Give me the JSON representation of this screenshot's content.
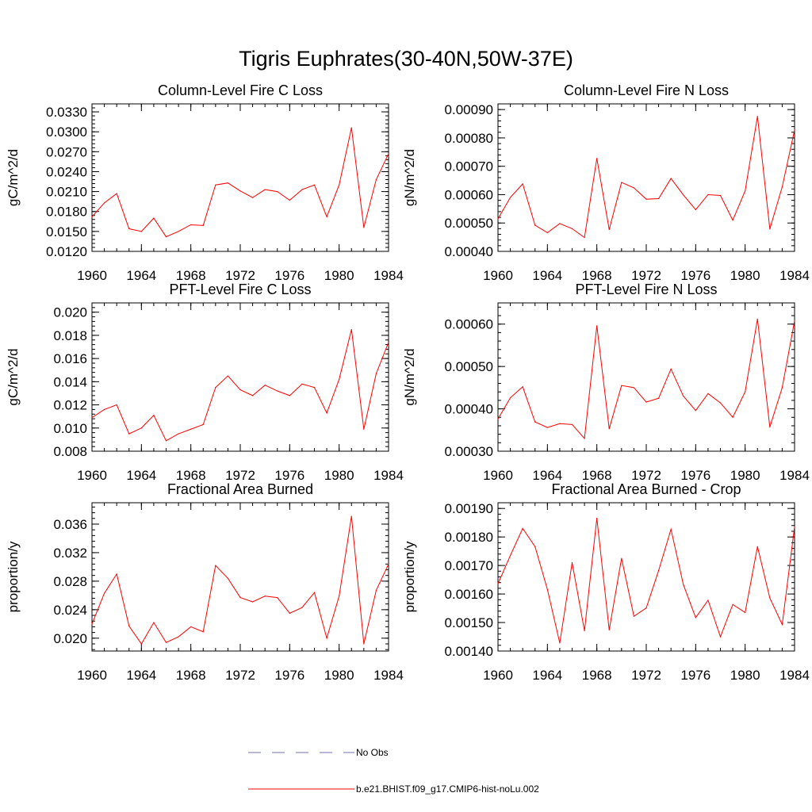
{
  "figure": {
    "title": "Tigris Euphrates(30-40N,50W-37E)"
  },
  "chart_data": [
    {
      "type": "line",
      "title": "Column-Level Fire C Loss",
      "ylabel": "gC/m^2/d",
      "xlabel": "",
      "xlim": [
        1960,
        1984
      ],
      "ylim": [
        0.012,
        0.0342
      ],
      "x_ticks": [
        1960,
        1964,
        1968,
        1972,
        1976,
        1980,
        1984
      ],
      "x_tick_labels": [
        "1960",
        "1964",
        "1968",
        "1972",
        "1976",
        "1980",
        "1984"
      ],
      "y_ticks": [
        0.012,
        0.015,
        0.018,
        0.021,
        0.024,
        0.027,
        0.03,
        0.033
      ],
      "y_tick_labels": [
        "0.0120",
        "0.0150",
        "0.0180",
        "0.0210",
        "0.0240",
        "0.0270",
        "0.0300",
        "0.0330"
      ],
      "x": [
        1960,
        1961,
        1962,
        1963,
        1964,
        1965,
        1966,
        1967,
        1968,
        1969,
        1970,
        1971,
        1972,
        1973,
        1974,
        1975,
        1976,
        1977,
        1978,
        1979,
        1980,
        1981,
        1982,
        1983,
        1984
      ],
      "series": [
        {
          "name": "b.e21.BHIST.f09_g17.CMIP6-hist-noLu.002",
          "color": "#ff0000",
          "values": [
            0.0172,
            0.0193,
            0.0207,
            0.0154,
            0.015,
            0.017,
            0.0142,
            0.015,
            0.016,
            0.0159,
            0.022,
            0.0223,
            0.0211,
            0.0201,
            0.0213,
            0.021,
            0.0197,
            0.0213,
            0.022,
            0.0172,
            0.022,
            0.0306,
            0.0156,
            0.0228,
            0.0267
          ]
        }
      ]
    },
    {
      "type": "line",
      "title": "Column-Level Fire N Loss",
      "ylabel": "gN/m^2/d",
      "xlabel": "",
      "xlim": [
        1960,
        1984
      ],
      "ylim": [
        0.0004,
        0.00092
      ],
      "x_ticks": [
        1960,
        1964,
        1968,
        1972,
        1976,
        1980,
        1984
      ],
      "x_tick_labels": [
        "1960",
        "1964",
        "1968",
        "1972",
        "1976",
        "1980",
        "1984"
      ],
      "y_ticks": [
        0.0004,
        0.0005,
        0.0006,
        0.0007,
        0.0008,
        0.0009
      ],
      "y_tick_labels": [
        "0.00040",
        "0.00050",
        "0.00060",
        "0.00070",
        "0.00080",
        "0.00090"
      ],
      "x": [
        1960,
        1961,
        1962,
        1963,
        1964,
        1965,
        1966,
        1967,
        1968,
        1969,
        1970,
        1971,
        1972,
        1973,
        1974,
        1975,
        1976,
        1977,
        1978,
        1979,
        1980,
        1981,
        1982,
        1983,
        1984
      ],
      "series": [
        {
          "name": "b.e21.BHIST.f09_g17.CMIP6-hist-noLu.002",
          "color": "#ff0000",
          "values": [
            0.000515,
            0.00059,
            0.000638,
            0.000492,
            0.000466,
            0.000498,
            0.00048,
            0.000449,
            0.000728,
            0.000477,
            0.000643,
            0.000624,
            0.000584,
            0.000586,
            0.000657,
            0.000599,
            0.000547,
            0.0006,
            0.000597,
            0.00051,
            0.000613,
            0.000876,
            0.000479,
            0.000627,
            0.000828
          ]
        }
      ]
    },
    {
      "type": "line",
      "title": "PFT-Level Fire C Loss",
      "ylabel": "gC/m^2/d",
      "xlabel": "",
      "xlim": [
        1960,
        1984
      ],
      "ylim": [
        0.008,
        0.0208
      ],
      "x_ticks": [
        1960,
        1964,
        1968,
        1972,
        1976,
        1980,
        1984
      ],
      "x_tick_labels": [
        "1960",
        "1964",
        "1968",
        "1972",
        "1976",
        "1980",
        "1984"
      ],
      "y_ticks": [
        0.008,
        0.01,
        0.012,
        0.014,
        0.016,
        0.018,
        0.02
      ],
      "y_tick_labels": [
        "0.008",
        "0.010",
        "0.012",
        "0.014",
        "0.016",
        "0.018",
        "0.020"
      ],
      "x": [
        1960,
        1961,
        1962,
        1963,
        1964,
        1965,
        1966,
        1967,
        1968,
        1969,
        1970,
        1971,
        1972,
        1973,
        1974,
        1975,
        1976,
        1977,
        1978,
        1979,
        1980,
        1981,
        1982,
        1983,
        1984
      ],
      "series": [
        {
          "name": "b.e21.BHIST.f09_g17.CMIP6-hist-noLu.002",
          "color": "#ff0000",
          "values": [
            0.0109,
            0.0116,
            0.012,
            0.0095,
            0.01,
            0.0111,
            0.0089,
            0.0095,
            0.0099,
            0.0103,
            0.0135,
            0.0145,
            0.0133,
            0.0128,
            0.0137,
            0.0132,
            0.0128,
            0.0138,
            0.0135,
            0.0113,
            0.0142,
            0.0185,
            0.0099,
            0.0147,
            0.0174
          ]
        }
      ]
    },
    {
      "type": "line",
      "title": "PFT-Level Fire N Loss",
      "ylabel": "gN/m^2/d",
      "xlabel": "",
      "xlim": [
        1960,
        1984
      ],
      "ylim": [
        0.0003,
        0.00065
      ],
      "x_ticks": [
        1960,
        1964,
        1968,
        1972,
        1976,
        1980,
        1984
      ],
      "x_tick_labels": [
        "1960",
        "1964",
        "1968",
        "1972",
        "1976",
        "1980",
        "1984"
      ],
      "y_ticks": [
        0.0003,
        0.0004,
        0.0005,
        0.0006
      ],
      "y_tick_labels": [
        "0.00030",
        "0.00040",
        "0.00050",
        "0.00060"
      ],
      "x": [
        1960,
        1961,
        1962,
        1963,
        1964,
        1965,
        1966,
        1967,
        1968,
        1969,
        1970,
        1971,
        1972,
        1973,
        1974,
        1975,
        1976,
        1977,
        1978,
        1979,
        1980,
        1981,
        1982,
        1983,
        1984
      ],
      "series": [
        {
          "name": "b.e21.BHIST.f09_g17.CMIP6-hist-noLu.002",
          "color": "#ff0000",
          "values": [
            0.000376,
            0.000426,
            0.000452,
            0.000369,
            0.000356,
            0.000365,
            0.000363,
            0.00033,
            0.000596,
            0.000353,
            0.000455,
            0.00045,
            0.000416,
            0.000425,
            0.000494,
            0.00043,
            0.000396,
            0.000436,
            0.000414,
            0.00038,
            0.00044,
            0.000612,
            0.000357,
            0.00045,
            0.000608
          ]
        }
      ]
    },
    {
      "type": "line",
      "title": "Fractional Area Burned",
      "ylabel": "proportion/y",
      "xlabel": "",
      "xlim": [
        1960,
        1984
      ],
      "ylim": [
        0.0182,
        0.039
      ],
      "x_ticks": [
        1960,
        1964,
        1968,
        1972,
        1976,
        1980,
        1984
      ],
      "x_tick_labels": [
        "1960",
        "1964",
        "1968",
        "1972",
        "1976",
        "1980",
        "1984"
      ],
      "y_ticks": [
        0.02,
        0.024,
        0.028,
        0.032,
        0.036
      ],
      "y_tick_labels": [
        "0.020",
        "0.024",
        "0.028",
        "0.032",
        "0.036"
      ],
      "x": [
        1960,
        1961,
        1962,
        1963,
        1964,
        1965,
        1966,
        1967,
        1968,
        1969,
        1970,
        1971,
        1972,
        1973,
        1974,
        1975,
        1976,
        1977,
        1978,
        1979,
        1980,
        1981,
        1982,
        1983,
        1984
      ],
      "series": [
        {
          "name": "b.e21.BHIST.f09_g17.CMIP6-hist-noLu.002",
          "color": "#ff0000",
          "values": [
            0.022,
            0.0263,
            0.029,
            0.0217,
            0.0192,
            0.0222,
            0.0194,
            0.0202,
            0.0216,
            0.0209,
            0.0302,
            0.0284,
            0.0257,
            0.0251,
            0.0259,
            0.0257,
            0.0235,
            0.0243,
            0.0264,
            0.02,
            0.0259,
            0.0371,
            0.0192,
            0.0267,
            0.0304
          ]
        }
      ]
    },
    {
      "type": "line",
      "title": "Fractional Area Burned - Crop",
      "ylabel": "proportion/y",
      "xlabel": "",
      "xlim": [
        1960,
        1984
      ],
      "ylim": [
        0.0014,
        0.00192
      ],
      "x_ticks": [
        1960,
        1964,
        1968,
        1972,
        1976,
        1980,
        1984
      ],
      "x_tick_labels": [
        "1960",
        "1964",
        "1968",
        "1972",
        "1976",
        "1980",
        "1984"
      ],
      "y_ticks": [
        0.0014,
        0.0015,
        0.0016,
        0.0017,
        0.0018,
        0.0019
      ],
      "y_tick_labels": [
        "0.00140",
        "0.00150",
        "0.00160",
        "0.00170",
        "0.00180",
        "0.00190"
      ],
      "x": [
        1960,
        1961,
        1962,
        1963,
        1964,
        1965,
        1966,
        1967,
        1968,
        1969,
        1970,
        1971,
        1972,
        1973,
        1974,
        1975,
        1976,
        1977,
        1978,
        1979,
        1980,
        1981,
        1982,
        1983,
        1984
      ],
      "series": [
        {
          "name": "b.e21.BHIST.f09_g17.CMIP6-hist-noLu.002",
          "color": "#ff0000",
          "values": [
            0.001636,
            0.001735,
            0.00183,
            0.001766,
            0.001616,
            0.001428,
            0.00171,
            0.001471,
            0.001866,
            0.001474,
            0.001725,
            0.001522,
            0.001551,
            0.001682,
            0.001827,
            0.001633,
            0.001517,
            0.001578,
            0.00145,
            0.001563,
            0.001535,
            0.001766,
            0.001586,
            0.001493,
            0.001836
          ]
        }
      ]
    }
  ],
  "legend": {
    "placement": "bottom-center",
    "entries": [
      {
        "label": "No Obs",
        "color": "#6f6fb0",
        "style": "dashed"
      },
      {
        "label": "b.e21.BHIST.f09_g17.CMIP6-hist-noLu.002",
        "color": "#ff0000",
        "style": "solid"
      }
    ]
  }
}
